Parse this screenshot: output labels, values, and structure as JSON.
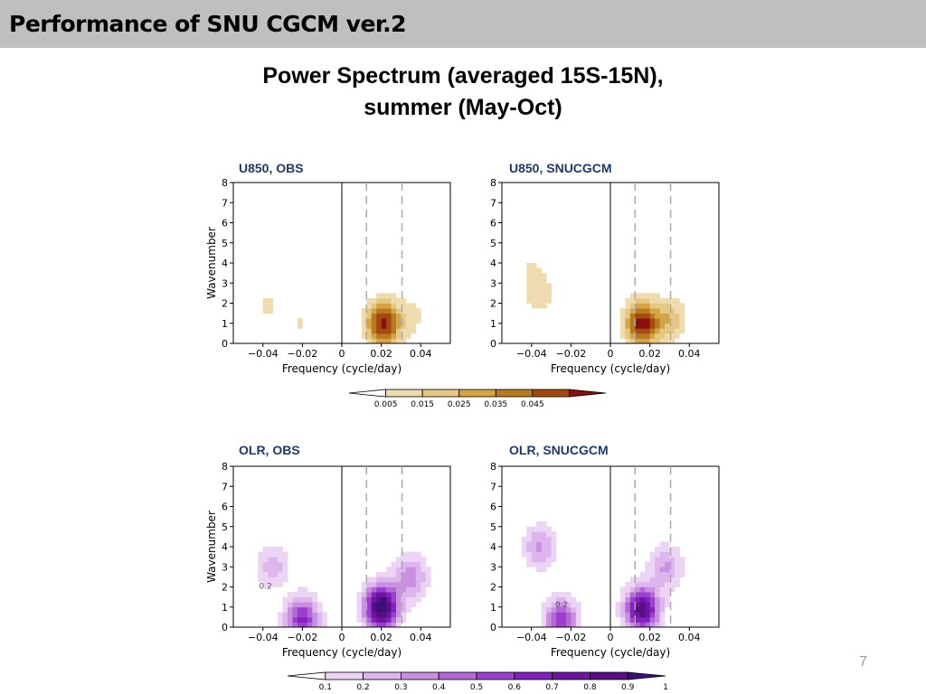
{
  "header": {
    "title": "Performance of SNU CGCM ver.2"
  },
  "subtitle": {
    "line1": "Power Spectrum (averaged 15S-15N),",
    "line2": "summer (May-Oct)"
  },
  "page_number": "7",
  "colors": {
    "header_bg": "#bfbfbf",
    "panel_title": "#1f3a68",
    "brown_scale": [
      "#ffffff",
      "#efdcae",
      "#e4c884",
      "#d4a445",
      "#b87a1c",
      "#a44a10",
      "#8a1010"
    ],
    "purple_scale": [
      "#ffffff",
      "#ebd4f4",
      "#dcb6ec",
      "#c98fe1",
      "#b269d5",
      "#9a3fd0",
      "#8420c0",
      "#6e14a0",
      "#5a0e84",
      "#3a1076"
    ]
  },
  "chart_data": [
    {
      "type": "heatmap",
      "title": "U850, OBS",
      "xlabel": "Frequency  (cycle/day)",
      "ylabel": "Wavenumber",
      "xlim": [
        -0.055,
        0.055
      ],
      "ylim": [
        0,
        8
      ],
      "xticks": [
        "-0.04",
        "-0.02",
        "0",
        "0.02",
        "0.04"
      ],
      "yticks": [
        "0",
        "1",
        "2",
        "3",
        "4",
        "5",
        "6",
        "7",
        "8"
      ],
      "dashed_lines_x": [
        0.0125,
        0.0305
      ],
      "peaks": [
        {
          "x": 0.021,
          "y": 1.0,
          "value": 0.045
        },
        {
          "x": 0.036,
          "y": 1.3,
          "value": 0.008
        },
        {
          "x": -0.038,
          "y": 1.9,
          "value": 0.008
        },
        {
          "x": -0.021,
          "y": 1.0,
          "value": 0.007
        }
      ]
    },
    {
      "type": "heatmap",
      "title": "U850, SNUCGCM",
      "xlabel": "Frequency  (cycle/day)",
      "ylabel": "",
      "xlim": [
        -0.055,
        0.055
      ],
      "ylim": [
        0,
        8
      ],
      "xticks": [
        "-0.04",
        "-0.02",
        "0",
        "0.02",
        "0.04"
      ],
      "yticks": [
        "0",
        "1",
        "2",
        "3",
        "4",
        "5",
        "6",
        "7",
        "8"
      ],
      "dashed_lines_x": [
        0.0125,
        0.0305
      ],
      "peaks": [
        {
          "x": 0.016,
          "y": 1.0,
          "value": 0.045
        },
        {
          "x": 0.03,
          "y": 1.2,
          "value": 0.018
        },
        {
          "x": -0.036,
          "y": 2.4,
          "value": 0.011
        },
        {
          "x": -0.04,
          "y": 3.8,
          "value": 0.006
        }
      ]
    },
    {
      "type": "heatmap",
      "title": "OLR, OBS",
      "xlabel": "Frequency  (cycle/day)",
      "ylabel": "Wavenumber",
      "xlim": [
        -0.055,
        0.055
      ],
      "ylim": [
        0,
        8
      ],
      "xticks": [
        "-0.04",
        "-0.02",
        "0",
        "0.02",
        "0.04"
      ],
      "yticks": [
        "0",
        "1",
        "2",
        "3",
        "4",
        "5",
        "6",
        "7",
        "8"
      ],
      "dashed_lines_x": [
        0.0125,
        0.0305
      ],
      "annotations": [
        "0.2"
      ],
      "peaks": [
        {
          "x": 0.02,
          "y": 1.0,
          "value": 1.0
        },
        {
          "x": 0.035,
          "y": 2.5,
          "value": 0.35
        },
        {
          "x": -0.02,
          "y": 0.4,
          "value": 0.6
        },
        {
          "x": -0.035,
          "y": 3.0,
          "value": 0.25
        }
      ]
    },
    {
      "type": "heatmap",
      "title": "OLR, SNUCGCM",
      "xlabel": "Frequency  (cycle/day)",
      "ylabel": "",
      "xlim": [
        -0.055,
        0.055
      ],
      "ylim": [
        0,
        8
      ],
      "xticks": [
        "-0.04",
        "-0.02",
        "0",
        "0.02",
        "0.04"
      ],
      "yticks": [
        "0",
        "1",
        "2",
        "3",
        "4",
        "5",
        "6",
        "7",
        "8"
      ],
      "dashed_lines_x": [
        0.0125,
        0.0305
      ],
      "annotations": [
        "0.2"
      ],
      "peaks": [
        {
          "x": 0.016,
          "y": 0.9,
          "value": 0.85
        },
        {
          "x": 0.028,
          "y": 3.0,
          "value": 0.3
        },
        {
          "x": -0.025,
          "y": 0.3,
          "value": 0.55
        },
        {
          "x": -0.036,
          "y": 4.0,
          "value": 0.3
        }
      ]
    }
  ],
  "colorbars": {
    "u850": {
      "labels": [
        "0.005",
        "0.015",
        "0.025",
        "0.035",
        "0.045"
      ]
    },
    "olr": {
      "labels": [
        "0.1",
        "0.2",
        "0.3",
        "0.4",
        "0.5",
        "0.6",
        "0.7",
        "0.8",
        "0.9",
        "1"
      ]
    }
  }
}
